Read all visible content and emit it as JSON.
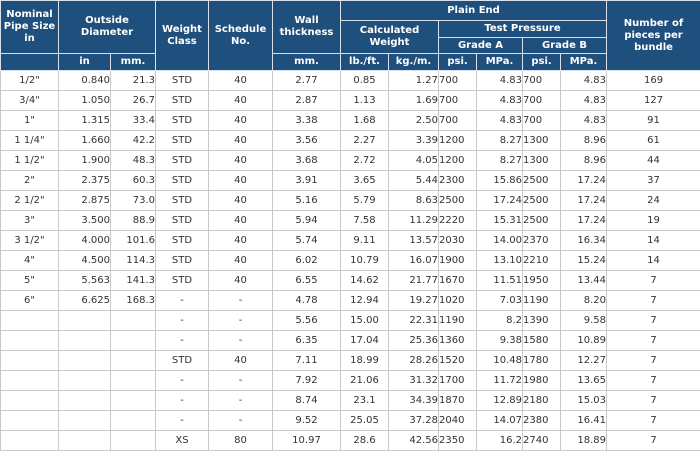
{
  "headers": {
    "nominal": "Nominal Pipe Size in",
    "outside_diameter": "Outside Diameter",
    "weight_class": "Weight Class",
    "schedule": "Schedule No.",
    "wall_thickness": "Wall thickness",
    "plain_end": "Plain End",
    "calculated_weight": "Calculated Weight",
    "test_pressure": "Test Pressure",
    "grade_a": "Grade A",
    "grade_b": "Grade B",
    "pieces": "Number of pieces per bundle",
    "unit_in": "in",
    "unit_mm": "mm.",
    "unit_wall_mm": "mm.",
    "unit_lb": "lb./ft.",
    "unit_kg": "kg./m.",
    "unit_psi_a": "psi.",
    "unit_mpa_a": "MPa.",
    "unit_psi_b": "psi.",
    "unit_mpa_b": "MPa."
  },
  "rows": [
    [
      "1/2\"",
      "0.840",
      "21.3",
      "STD",
      "40",
      "2.77",
      "0.85",
      "1.27",
      "700",
      "4.83",
      "700",
      "4.83",
      "169"
    ],
    [
      "3/4\"",
      "1.050",
      "26.7",
      "STD",
      "40",
      "2.87",
      "1.13",
      "1.69",
      "700",
      "4.83",
      "700",
      "4.83",
      "127"
    ],
    [
      "1\"",
      "1.315",
      "33.4",
      "STD",
      "40",
      "3.38",
      "1.68",
      "2.50",
      "700",
      "4.83",
      "700",
      "4.83",
      "91"
    ],
    [
      "1 1/4\"",
      "1.660",
      "42.2",
      "STD",
      "40",
      "3.56",
      "2.27",
      "3.39",
      "1200",
      "8.27",
      "1300",
      "8.96",
      "61"
    ],
    [
      "1 1/2\"",
      "1.900",
      "48.3",
      "STD",
      "40",
      "3.68",
      "2.72",
      "4.05",
      "1200",
      "8.27",
      "1300",
      "8.96",
      "44"
    ],
    [
      "2\"",
      "2.375",
      "60.3",
      "STD",
      "40",
      "3.91",
      "3.65",
      "5.44",
      "2300",
      "15.86",
      "2500",
      "17.24",
      "37"
    ],
    [
      "2 1/2\"",
      "2.875",
      "73.0",
      "STD",
      "40",
      "5.16",
      "5.79",
      "8.63",
      "2500",
      "17.24",
      "2500",
      "17.24",
      "24"
    ],
    [
      "3\"",
      "3.500",
      "88.9",
      "STD",
      "40",
      "5.94",
      "7.58",
      "11.29",
      "2220",
      "15.31",
      "2500",
      "17.24",
      "19"
    ],
    [
      "3 1/2\"",
      "4.000",
      "101.6",
      "STD",
      "40",
      "5.74",
      "9.11",
      "13.57",
      "2030",
      "14.00",
      "2370",
      "16.34",
      "14"
    ],
    [
      "4\"",
      "4.500",
      "114.3",
      "STD",
      "40",
      "6.02",
      "10.79",
      "16.07",
      "1900",
      "13.10",
      "2210",
      "15.24",
      "14"
    ],
    [
      "5\"",
      "5.563",
      "141.3",
      "STD",
      "40",
      "6.55",
      "14.62",
      "21.77",
      "1670",
      "11.51",
      "1950",
      "13.44",
      "7"
    ],
    [
      "6\"",
      "6.625",
      "168.3",
      "-",
      "-",
      "4.78",
      "12.94",
      "19.27",
      "1020",
      "7.03",
      "1190",
      "8.20",
      "7"
    ],
    [
      "",
      "",
      "",
      "-",
      "-",
      "5.56",
      "15.00",
      "22.31",
      "1190",
      "8.2",
      "1390",
      "9.58",
      "7"
    ],
    [
      "",
      "",
      "",
      "-",
      "-",
      "6.35",
      "17.04",
      "25.36",
      "1360",
      "9.38",
      "1580",
      "10.89",
      "7"
    ],
    [
      "",
      "",
      "",
      "STD",
      "40",
      "7.11",
      "18.99",
      "28.26",
      "1520",
      "10.48",
      "1780",
      "12.27",
      "7"
    ],
    [
      "",
      "",
      "",
      "-",
      "-",
      "7.92",
      "21.06",
      "31.32",
      "1700",
      "11.72",
      "1980",
      "13.65",
      "7"
    ],
    [
      "",
      "",
      "",
      "-",
      "-",
      "8.74",
      "23.1",
      "34.39",
      "1870",
      "12.89",
      "2180",
      "15.03",
      "7"
    ],
    [
      "",
      "",
      "",
      "-",
      "-",
      "9.52",
      "25.05",
      "37.28",
      "2040",
      "14.07",
      "2380",
      "16.41",
      "7"
    ],
    [
      "",
      "",
      "",
      "XS",
      "80",
      "10.97",
      "28.6",
      "42.56",
      "2350",
      "16.2",
      "2740",
      "18.89",
      "7"
    ]
  ]
}
